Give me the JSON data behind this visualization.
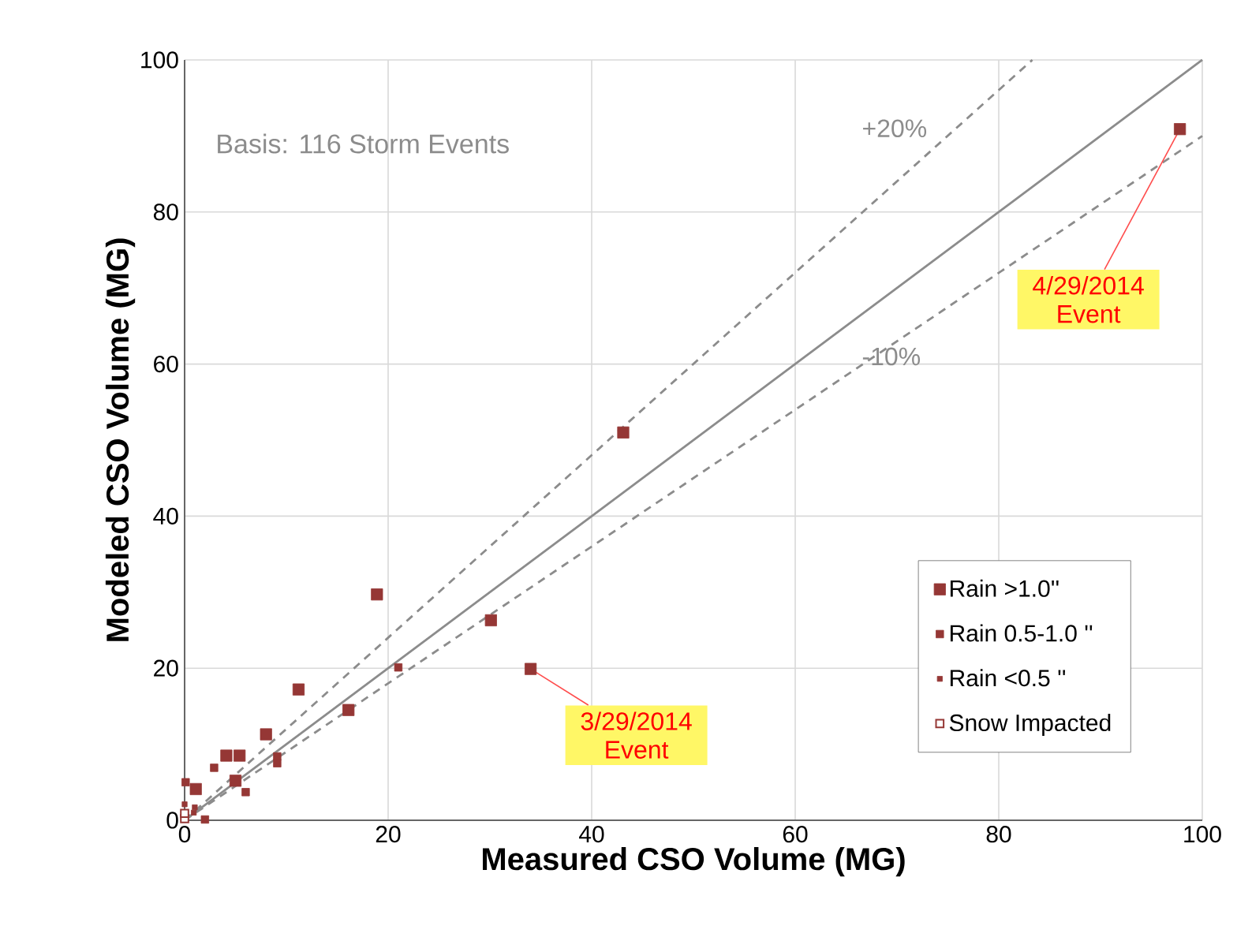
{
  "chart_data": {
    "type": "scatter",
    "xlabel": "Measured CSO Volume (MG)",
    "ylabel": "Modeled CSO Volume (MG)",
    "xlim": [
      0,
      100
    ],
    "ylim": [
      0,
      100
    ],
    "xticks": [
      0,
      20,
      40,
      60,
      80,
      100
    ],
    "yticks": [
      0,
      20,
      40,
      60,
      80,
      100
    ],
    "grid": true,
    "legend": "bottom right",
    "marker": "square",
    "series": [
      {
        "name": "Rain >1.0''",
        "color": "#953735",
        "x": [
          97.8,
          43.1,
          34.0,
          30.1,
          18.9,
          16.1,
          11.2,
          8.0,
          4.1,
          5.4,
          5.0,
          1.1
        ],
        "values": [
          90.9,
          51.0,
          19.9,
          26.3,
          29.7,
          14.5,
          17.2,
          11.3,
          8.5,
          8.5,
          5.2,
          4.1
        ]
      },
      {
        "name": "Rain 0.5-1.0 ''",
        "color": "#953735",
        "x": [
          21.0,
          9.1,
          9.1,
          2.9,
          6.0,
          0.1,
          2.0
        ],
        "values": [
          20.1,
          8.4,
          7.5,
          6.9,
          3.7,
          5.0,
          0.1
        ]
      },
      {
        "name": "Rain <0.5 ''",
        "color": "#953735",
        "x": [
          0.0,
          1.0,
          0.9
        ],
        "values": [
          2.1,
          1.7,
          1.0
        ]
      },
      {
        "name": "Snow Impacted",
        "color": "#953735",
        "x": [
          0.0,
          0.0
        ],
        "values": [
          0.2,
          0.9
        ]
      },
      {
        "type": "line",
        "marker": "none",
        "line_style": "solid",
        "color": "#8c8c8c",
        "x": [
          0,
          100
        ],
        "values": [
          0,
          100
        ]
      },
      {
        "type": "line",
        "marker": "none",
        "line_style": "dashed",
        "color": "#8c8c8c",
        "x": [
          0,
          83.3
        ],
        "values": [
          0,
          100
        ]
      },
      {
        "type": "line",
        "marker": "none",
        "line_style": "dashed",
        "color": "#8c8c8c",
        "x": [
          0,
          100
        ],
        "values": [
          0,
          90
        ]
      }
    ],
    "annotations": [
      "Basis: 116 Storm Events",
      "+20%",
      "-10%",
      {
        "text": "3/29/2014 Event",
        "x": 34.0,
        "y": 19.9
      },
      {
        "text": "4/29/2014 Event",
        "x": 97.8,
        "y": 90.9
      }
    ]
  }
}
